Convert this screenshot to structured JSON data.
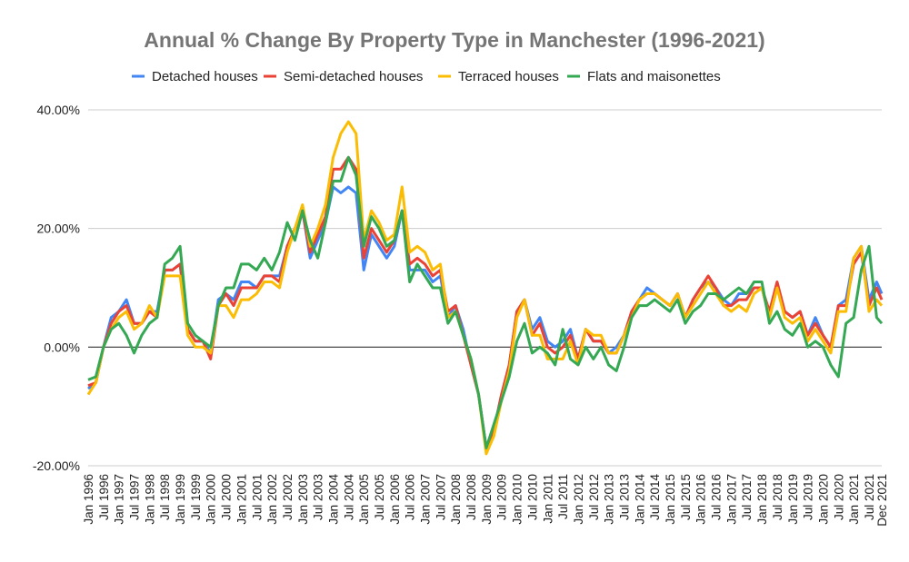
{
  "chart_data": {
    "type": "line",
    "title": "Annual % Change By Property Type in Manchester (1996-2021)",
    "xlabel": "",
    "ylabel": "",
    "ylim": [
      -20,
      40
    ],
    "y_ticks": [
      "40.00%",
      "20.00%",
      "0.00%",
      "-20.00%"
    ],
    "y_tick_values": [
      40,
      20,
      0,
      -20
    ],
    "grid": true,
    "legend_position": "top",
    "x_tick_labels": [
      "Jan 1996",
      "Jul 1996",
      "Jan 1997",
      "Jul 1997",
      "Jan 1998",
      "Jul 1998",
      "Jan 1999",
      "Jul 1999",
      "Jan 2000",
      "Jul 2000",
      "Jan 2001",
      "Jul 2001",
      "Jan 2002",
      "Jul 2002",
      "Jan 2003",
      "Jul 2003",
      "Jan 2004",
      "Jul 2004",
      "Jan 2005",
      "Jul 2005",
      "Jan 2006",
      "Jul 2006",
      "Jan 2007",
      "Jul 2007",
      "Jan 2008",
      "Jul 2008",
      "Jan 2009",
      "Jul 2009",
      "Jan 2010",
      "Jul 2010",
      "Jan 2011",
      "Jul 2011",
      "Jan 2012",
      "Jul 2012",
      "Jan 2013",
      "Jul 2013",
      "Jan 2014",
      "Jul 2014",
      "Jan 2015",
      "Jul 2015",
      "Jan 2016",
      "Jul 2016",
      "Jan 2017",
      "Jul 2017",
      "Jan 2018",
      "Jul 2018",
      "Jan 2019",
      "Jul 2019",
      "Jan 2020",
      "Jul 2020",
      "Jan 2021",
      "Jul 2021",
      "Dec 2021"
    ],
    "x_sampling": "quarterly from Jan 1996, last point Dec 2021",
    "series": [
      {
        "name": "Detached houses",
        "color": "#4285F4",
        "values": [
          -7,
          -6,
          0,
          5,
          6,
          8,
          4,
          4,
          6,
          6,
          13,
          13,
          14,
          3,
          1,
          1,
          -1,
          8,
          9,
          8,
          11,
          11,
          10,
          12,
          12,
          12,
          17,
          20,
          23,
          15,
          18,
          21,
          27,
          26,
          27,
          26,
          13,
          19,
          17,
          15,
          17,
          23,
          13,
          13,
          13,
          11,
          12,
          5,
          7,
          3,
          -3,
          -8,
          -17,
          -14,
          -8,
          -3,
          6,
          8,
          3,
          5,
          1,
          0,
          1,
          3,
          -2,
          3,
          1,
          1,
          -1,
          0,
          2,
          6,
          8,
          10,
          9,
          8,
          7,
          9,
          5,
          8,
          10,
          11,
          10,
          8,
          7,
          9,
          9,
          10,
          10,
          5,
          10,
          6,
          5,
          6,
          2,
          5,
          2,
          0,
          7,
          8,
          15,
          17,
          8,
          11,
          9
        ]
      },
      {
        "name": "Semi-detached houses",
        "color": "#EA4335",
        "values": [
          -6.5,
          -6,
          0,
          4,
          6,
          7,
          4,
          4,
          6,
          5,
          13,
          13,
          14,
          3,
          1,
          1,
          -2,
          7,
          9,
          7,
          10,
          10,
          10,
          12,
          12,
          11,
          17,
          20,
          23,
          16,
          19,
          22,
          30,
          30,
          32,
          30,
          15,
          20,
          18,
          16,
          18,
          23,
          14,
          15,
          14,
          12,
          13,
          6,
          7,
          2,
          -3,
          -8,
          -17,
          -14,
          -8,
          -3,
          6,
          8,
          2,
          4,
          0,
          -1,
          0,
          2,
          -2,
          3,
          1,
          1,
          -1,
          -1,
          2,
          6,
          8,
          9,
          9,
          8,
          7,
          9,
          5,
          8,
          10,
          12,
          10,
          7,
          7,
          8,
          8,
          10,
          10,
          6,
          11,
          6,
          5,
          6,
          2,
          4,
          2,
          0,
          7,
          7,
          14,
          16,
          7,
          10,
          8
        ]
      },
      {
        "name": "Terraced houses",
        "color": "#FBBC04",
        "values": [
          -8,
          -6,
          0,
          3,
          5,
          6,
          3,
          4,
          7,
          5,
          12,
          12,
          12,
          2,
          0,
          0,
          -1,
          7,
          7,
          5,
          8,
          8,
          9,
          11,
          11,
          10,
          16,
          20,
          24,
          17,
          20,
          24,
          32,
          36,
          38,
          36,
          18,
          23,
          21,
          18,
          19,
          27,
          16,
          17,
          16,
          13,
          14,
          5,
          6,
          2,
          -2,
          -8,
          -18,
          -15,
          -9,
          -4,
          5,
          8,
          2,
          2,
          -2,
          -2,
          -2,
          1,
          -3,
          3,
          2,
          2,
          -1,
          -1,
          2,
          5,
          8,
          9,
          9,
          8,
          7,
          9,
          5,
          7,
          9,
          11,
          9,
          7,
          6,
          7,
          6,
          9,
          10,
          5,
          10,
          5,
          4,
          5,
          1,
          3,
          1,
          -1,
          6,
          6,
          15,
          17,
          6,
          8,
          7
        ]
      },
      {
        "name": "Flats and maisonettes",
        "color": "#34A853",
        "values": [
          -5.5,
          -5,
          0,
          3,
          4,
          2,
          -1,
          2,
          4,
          5,
          14,
          15,
          17,
          4,
          2,
          1,
          0,
          7,
          10,
          10,
          14,
          14,
          13,
          15,
          13,
          16,
          21,
          18,
          23,
          18,
          15,
          21,
          28,
          28,
          32,
          29,
          17,
          22,
          20,
          17,
          18,
          23,
          11,
          14,
          12,
          10,
          10,
          4,
          6,
          2,
          -2,
          -8,
          -17,
          -13,
          -9,
          -5,
          1,
          4,
          -1,
          0,
          -1,
          -3,
          3,
          -2,
          -3,
          0,
          -2,
          0,
          -3,
          -4,
          0,
          5,
          7,
          7,
          8,
          7,
          6,
          8,
          4,
          6,
          7,
          9,
          9,
          8,
          9,
          10,
          9,
          11,
          11,
          4,
          6,
          3,
          2,
          4,
          0,
          1,
          0,
          -3,
          -5,
          4,
          5,
          13,
          17,
          5,
          4
        ]
      }
    ]
  }
}
